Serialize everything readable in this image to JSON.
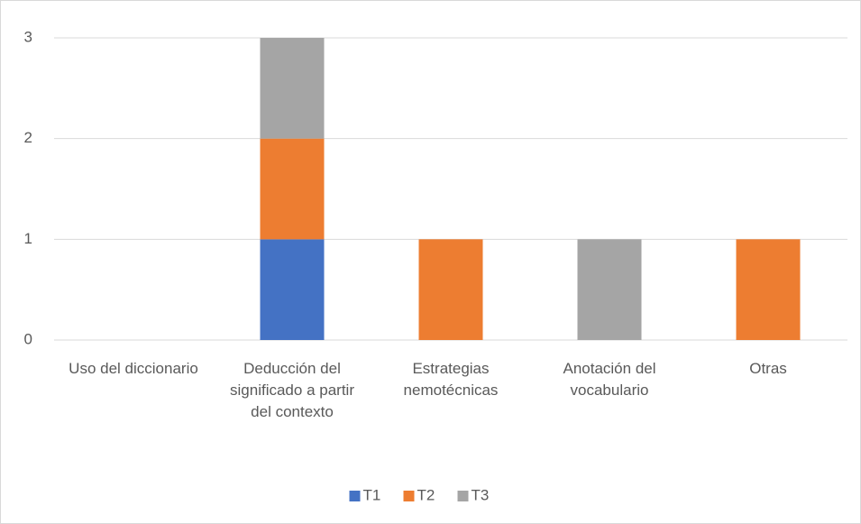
{
  "chart_data": {
    "type": "bar",
    "stacked": true,
    "categories": [
      "Uso del diccionario",
      "Deducción del significado a partir del contexto",
      "Estrategias nemotécnicas",
      "Anotación del vocabulario",
      "Otras"
    ],
    "series": [
      {
        "name": "T1",
        "color": "#4472c4",
        "values": [
          0,
          1,
          0,
          0,
          0
        ]
      },
      {
        "name": "T2",
        "color": "#ed7d31",
        "values": [
          0,
          1,
          1,
          0,
          1
        ]
      },
      {
        "name": "T3",
        "color": "#a5a5a5",
        "values": [
          0,
          1,
          0,
          1,
          0
        ]
      }
    ],
    "ylim": [
      0,
      3
    ],
    "yticks": [
      0,
      1,
      2,
      3
    ],
    "grid": true,
    "legend": "bottom"
  }
}
